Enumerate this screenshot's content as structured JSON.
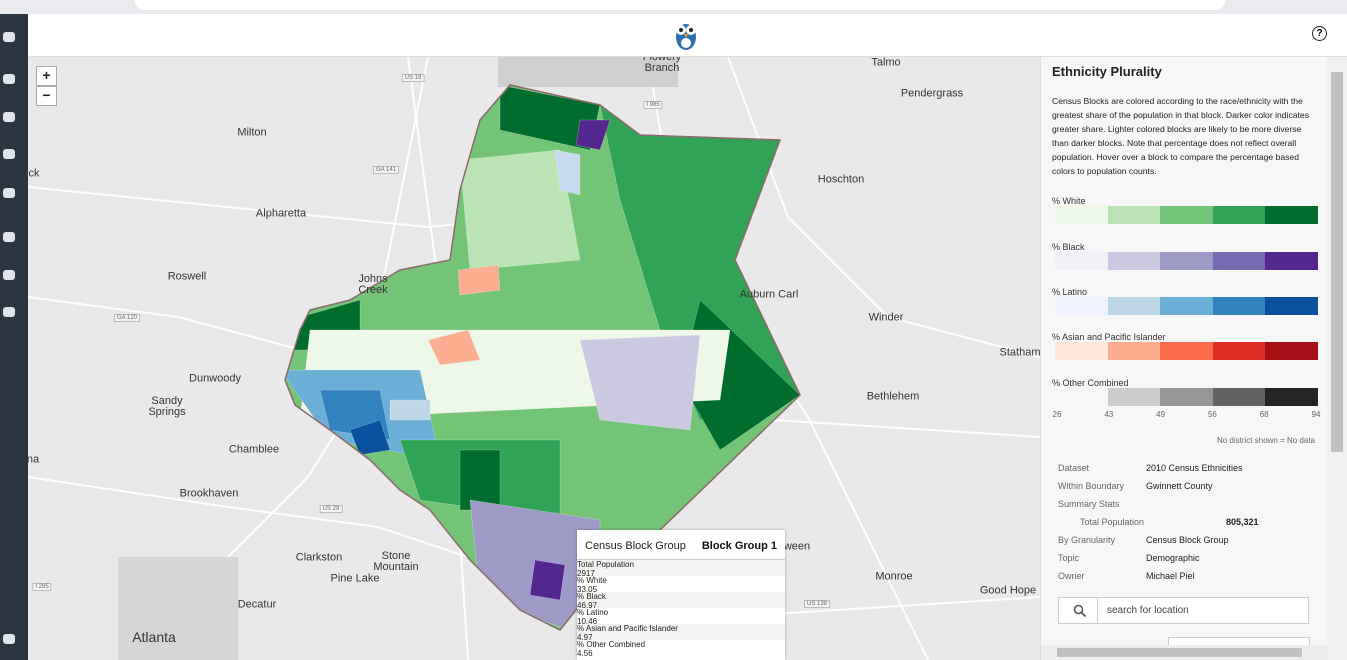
{
  "header": {
    "help": "?"
  },
  "map": {
    "zoom_in": "+",
    "zoom_out": "−",
    "labels": [
      "Milton",
      "Alpharetta",
      "Roswell",
      "Dunwoody",
      "Sandy Springs",
      "Chamblee",
      "Brookhaven",
      "Clarkston",
      "Stone Mountain",
      "Pine Lake",
      "Decatur",
      "Atlanta",
      "Johns Creek",
      "Talmo",
      "Pendergrass",
      "Hoschton",
      "Auburn Carl",
      "Winder",
      "Statham",
      "Bethlehem",
      "Monroe",
      "Good Hope",
      "Flowery Branch",
      "ween",
      "ck",
      "na"
    ],
    "roads": [
      "US 19",
      "GA 141",
      "GA 120",
      "US 29",
      "I 285",
      "I 985",
      "US 138"
    ]
  },
  "popup": {
    "title": "Census Block Group",
    "value": "Block Group 1",
    "rows": [
      [
        "Total Population",
        2917
      ],
      [
        "% White",
        33.05
      ],
      [
        "% Black",
        46.97
      ],
      [
        "% Latino",
        10.46
      ],
      [
        "% Asian and Pacific Islander",
        4.97
      ],
      [
        "% Other Combined",
        4.56
      ]
    ]
  },
  "panel": {
    "title": "Ethnicity Plurality",
    "description": "Census Blocks are colored according to the race/ethnicity with the greatest share of the population in that block. Darker color indicates greater share. Lighter colored blocks are likely to be more diverse than darker blocks. Note that percentage does not reflect overall population. Hover over a block to compare the percentage based colors to population counts.",
    "legend": [
      {
        "label": "% White",
        "colors": [
          "#edf8e9",
          "#bae4b3",
          "#74c476",
          "#31a354",
          "#006d2c"
        ]
      },
      {
        "label": "% Black",
        "colors": [
          "#f2f0f7",
          "#cbc9e2",
          "#9e9ac8",
          "#756bb1",
          "#54278f"
        ]
      },
      {
        "label": "% Latino",
        "colors": [
          "#eff3ff",
          "#bdd7e7",
          "#6baed6",
          "#3182bd",
          "#08519c"
        ]
      },
      {
        "label": "% Asian and Pacific Islander",
        "colors": [
          "#fee5d9",
          "#fcae91",
          "#fb6a4a",
          "#de2d26",
          "#a50f15"
        ]
      },
      {
        "label": "% Other Combined",
        "colors": [
          "#f7f7f7",
          "#cccccc",
          "#969696",
          "#636363",
          "#252525"
        ]
      }
    ],
    "ticks": [
      26,
      43,
      49,
      56,
      68,
      94
    ],
    "no_data_note": "No district shown = No data",
    "details": [
      {
        "key": "Dataset",
        "value": "2010 Census Ethnicities"
      },
      {
        "key": "Within Boundary",
        "value": "Gwinnett County"
      },
      {
        "key": "Summary Stats"
      },
      {
        "key": "Total Population",
        "value": "805,321"
      },
      {
        "key": "By Granularity",
        "value": "Census Block Group"
      },
      {
        "key": "Topic",
        "value": "Demographic"
      },
      {
        "key": "Owner",
        "value": "Michael Piel"
      }
    ],
    "search_placeholder": "search for location"
  }
}
